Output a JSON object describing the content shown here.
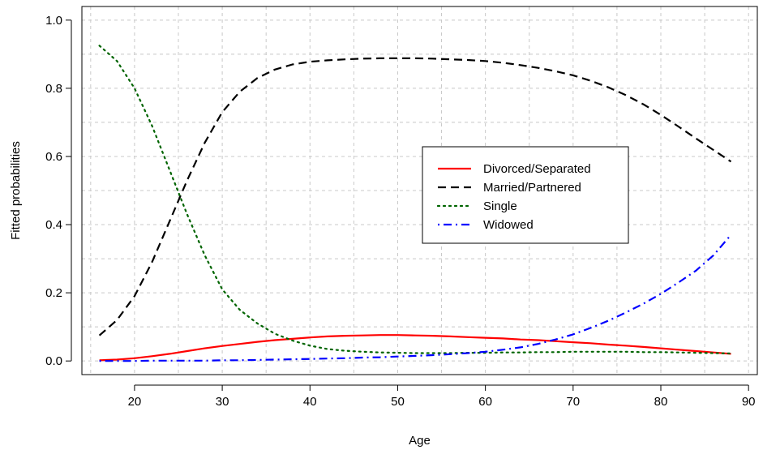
{
  "chart_data": {
    "type": "line",
    "title": "",
    "xlabel": "Age",
    "ylabel": "Fitted probabilities",
    "xlim": [
      14,
      91
    ],
    "ylim": [
      -0.04,
      1.04
    ],
    "xticks": [
      20,
      30,
      40,
      50,
      60,
      70,
      80,
      90
    ],
    "yticks": [
      0.0,
      0.2,
      0.4,
      0.6,
      0.8,
      1.0
    ],
    "xtick_labels": [
      "20",
      "30",
      "40",
      "50",
      "60",
      "70",
      "80",
      "90"
    ],
    "ytick_labels": [
      "0.0",
      "0.2",
      "0.4",
      "0.6",
      "0.8",
      "1.0"
    ],
    "grid": true,
    "legend_position": "center-right",
    "x": [
      16,
      18,
      20,
      22,
      24,
      26,
      28,
      30,
      32,
      34,
      36,
      38,
      40,
      42,
      44,
      46,
      48,
      50,
      52,
      54,
      56,
      58,
      60,
      62,
      64,
      66,
      68,
      70,
      72,
      74,
      76,
      78,
      80,
      82,
      84,
      86,
      88
    ],
    "series": [
      {
        "name": "Divorced/Separated",
        "color": "#ff0000",
        "dash": "solid",
        "values": [
          0.002,
          0.004,
          0.008,
          0.014,
          0.021,
          0.029,
          0.037,
          0.044,
          0.05,
          0.056,
          0.061,
          0.065,
          0.069,
          0.072,
          0.074,
          0.075,
          0.076,
          0.076,
          0.075,
          0.074,
          0.072,
          0.07,
          0.068,
          0.066,
          0.063,
          0.061,
          0.058,
          0.055,
          0.052,
          0.048,
          0.045,
          0.041,
          0.037,
          0.033,
          0.029,
          0.025,
          0.021
        ]
      },
      {
        "name": "Married/Partnered",
        "color": "#000000",
        "dash": "dashed",
        "values": [
          0.075,
          0.12,
          0.19,
          0.29,
          0.41,
          0.53,
          0.64,
          0.73,
          0.79,
          0.83,
          0.855,
          0.87,
          0.878,
          0.882,
          0.885,
          0.887,
          0.888,
          0.888,
          0.888,
          0.887,
          0.885,
          0.883,
          0.88,
          0.875,
          0.868,
          0.86,
          0.85,
          0.838,
          0.822,
          0.803,
          0.78,
          0.753,
          0.722,
          0.688,
          0.653,
          0.619,
          0.585
        ]
      },
      {
        "name": "Single",
        "color": "#006400",
        "dash": "dotted",
        "values": [
          0.925,
          0.88,
          0.8,
          0.69,
          0.56,
          0.43,
          0.31,
          0.21,
          0.15,
          0.11,
          0.08,
          0.06,
          0.045,
          0.035,
          0.03,
          0.027,
          0.025,
          0.024,
          0.023,
          0.023,
          0.023,
          0.024,
          0.024,
          0.025,
          0.025,
          0.026,
          0.026,
          0.027,
          0.027,
          0.027,
          0.027,
          0.026,
          0.026,
          0.025,
          0.024,
          0.023,
          0.022
        ]
      },
      {
        "name": "Widowed",
        "color": "#0000ff",
        "dash": "dotdash",
        "values": [
          0.0,
          0.0,
          0.0,
          0.001,
          0.001,
          0.001,
          0.001,
          0.002,
          0.002,
          0.003,
          0.004,
          0.005,
          0.006,
          0.007,
          0.008,
          0.01,
          0.011,
          0.013,
          0.015,
          0.017,
          0.02,
          0.023,
          0.027,
          0.033,
          0.04,
          0.05,
          0.063,
          0.078,
          0.097,
          0.118,
          0.142,
          0.168,
          0.197,
          0.23,
          0.265,
          0.31,
          0.37
        ]
      }
    ]
  }
}
